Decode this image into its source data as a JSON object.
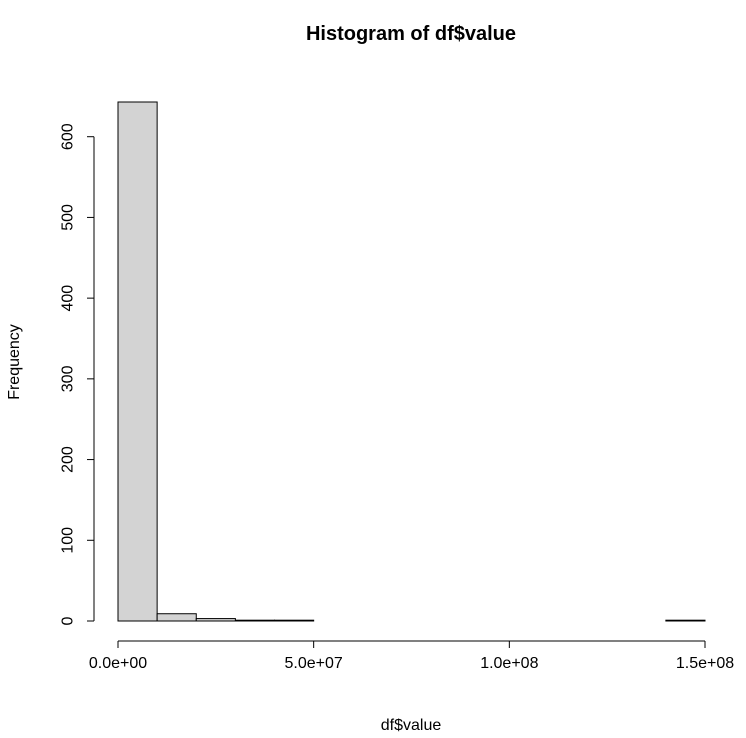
{
  "chart_data": {
    "type": "bar",
    "title": "Histogram of df$value",
    "xlabel": "df$value",
    "ylabel": "Frequency",
    "bar_color": "#d3d3d3",
    "bin_width": 10000000,
    "bin_edges_start": 0,
    "values": [
      643,
      9,
      3,
      1,
      1,
      0,
      0,
      0,
      0,
      0,
      0,
      0,
      0,
      0,
      1
    ],
    "xlim": [
      0,
      150000000
    ],
    "ylim": [
      0,
      643
    ],
    "x_ticks": [
      0,
      50000000,
      100000000,
      150000000
    ],
    "x_tick_labels": [
      "0.0e+00",
      "5.0e+07",
      "1.0e+08",
      "1.5e+08"
    ],
    "y_ticks": [
      0,
      100,
      200,
      300,
      400,
      500,
      600
    ],
    "y_tick_labels": [
      "0",
      "100",
      "200",
      "300",
      "400",
      "500",
      "600"
    ],
    "grid": false
  }
}
